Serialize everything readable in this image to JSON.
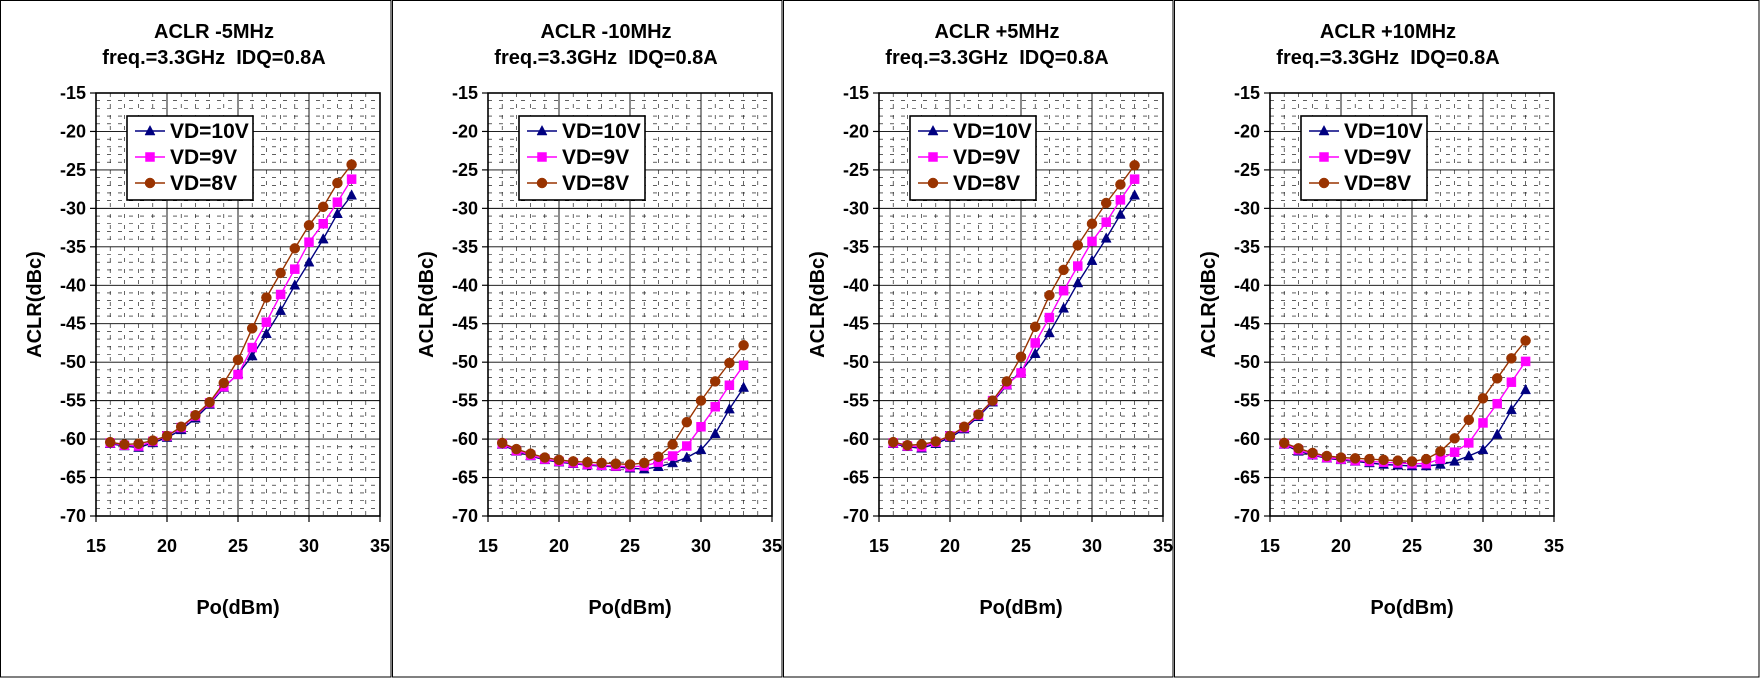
{
  "chart_data": [
    {
      "type": "line",
      "title": "ACLR -5MHz",
      "subtitle": "freq.=3.3GHz  IDQ=0.8A",
      "xlabel": "Po(dBm)",
      "ylabel": "ACLR(dBc)",
      "xlim": [
        15,
        35
      ],
      "ylim": [
        -70,
        -15
      ],
      "xticks": [
        "15",
        "20",
        "25",
        "30",
        "35"
      ],
      "yticks": [
        "-15",
        "-20",
        "-25",
        "-30",
        "-35",
        "-40",
        "-45",
        "-50",
        "-55",
        "-60",
        "-65",
        "-70"
      ],
      "grid": true,
      "legend": "top-left",
      "x": [
        16,
        17,
        18,
        19,
        20,
        21,
        22,
        23,
        24,
        25,
        26,
        27,
        28,
        29,
        30,
        31,
        32,
        33
      ],
      "series": [
        {
          "name": "VD=10V",
          "color": "#000080",
          "marker": "triangle",
          "values": [
            -60.6,
            -60.9,
            -61.1,
            -60.5,
            -59.8,
            -58.8,
            -57.3,
            -55.5,
            -53.3,
            -51.5,
            -49.2,
            -46.3,
            -43.3,
            -40.0,
            -37.0,
            -34.0,
            -30.7,
            -28.3
          ]
        },
        {
          "name": "VD=9V",
          "color": "#FF00FF",
          "marker": "square",
          "values": [
            -60.5,
            -60.8,
            -60.9,
            -60.3,
            -59.6,
            -58.5,
            -57.0,
            -55.3,
            -53.2,
            -51.6,
            -48.1,
            -44.8,
            -41.2,
            -37.9,
            -34.4,
            -32.0,
            -29.2,
            -26.2
          ]
        },
        {
          "name": "VD=8V",
          "color": "#993300",
          "marker": "circle",
          "values": [
            -60.4,
            -60.7,
            -60.6,
            -60.2,
            -59.6,
            -58.4,
            -56.9,
            -55.2,
            -52.7,
            -49.7,
            -45.6,
            -41.6,
            -38.4,
            -35.2,
            -32.2,
            -29.8,
            -26.7,
            -24.3
          ]
        }
      ]
    },
    {
      "type": "line",
      "title": "ACLR -10MHz",
      "subtitle": "freq.=3.3GHz  IDQ=0.8A",
      "xlabel": "Po(dBm)",
      "ylabel": "ACLR(dBc)",
      "xlim": [
        15,
        35
      ],
      "ylim": [
        -70,
        -15
      ],
      "xticks": [
        "15",
        "20",
        "25",
        "30",
        "35"
      ],
      "yticks": [
        "-15",
        "-20",
        "-25",
        "-30",
        "-35",
        "-40",
        "-45",
        "-50",
        "-55",
        "-60",
        "-65",
        "-70"
      ],
      "grid": true,
      "legend": "top-left",
      "x": [
        16,
        17,
        18,
        19,
        20,
        21,
        22,
        23,
        24,
        25,
        26,
        27,
        28,
        29,
        30,
        31,
        32,
        33
      ],
      "series": [
        {
          "name": "VD=10V",
          "color": "#000080",
          "marker": "triangle",
          "values": [
            -60.7,
            -61.6,
            -62.2,
            -62.7,
            -63.0,
            -63.2,
            -63.4,
            -63.5,
            -63.6,
            -63.8,
            -63.9,
            -63.6,
            -63.1,
            -62.4,
            -61.4,
            -59.3,
            -56.1,
            -53.3
          ]
        },
        {
          "name": "VD=9V",
          "color": "#FF00FF",
          "marker": "square",
          "values": [
            -60.6,
            -61.5,
            -62.1,
            -62.6,
            -62.9,
            -63.1,
            -63.3,
            -63.4,
            -63.5,
            -63.6,
            -63.5,
            -63.0,
            -62.2,
            -60.9,
            -58.4,
            -55.8,
            -53.0,
            -50.4
          ]
        },
        {
          "name": "VD=8V",
          "color": "#993300",
          "marker": "circle",
          "values": [
            -60.5,
            -61.3,
            -61.9,
            -62.4,
            -62.7,
            -62.9,
            -63.0,
            -63.1,
            -63.2,
            -63.3,
            -63.1,
            -62.3,
            -60.7,
            -57.8,
            -55.0,
            -52.5,
            -50.1,
            -47.8
          ]
        }
      ]
    },
    {
      "type": "line",
      "title": "ACLR +5MHz",
      "subtitle": "freq.=3.3GHz  IDQ=0.8A",
      "xlabel": "Po(dBm)",
      "ylabel": "ACLR(dBc)",
      "xlim": [
        15,
        35
      ],
      "ylim": [
        -70,
        -15
      ],
      "xticks": [
        "15",
        "20",
        "25",
        "30",
        "35"
      ],
      "yticks": [
        "-15",
        "-20",
        "-25",
        "-30",
        "-35",
        "-40",
        "-45",
        "-50",
        "-55",
        "-60",
        "-65",
        "-70"
      ],
      "grid": true,
      "legend": "top-left",
      "x": [
        16,
        17,
        18,
        19,
        20,
        21,
        22,
        23,
        24,
        25,
        26,
        27,
        28,
        29,
        30,
        31,
        32,
        33
      ],
      "series": [
        {
          "name": "VD=10V",
          "color": "#000080",
          "marker": "triangle",
          "values": [
            -60.6,
            -61.0,
            -61.2,
            -60.6,
            -59.8,
            -58.7,
            -57.1,
            -55.2,
            -53.0,
            -51.2,
            -48.9,
            -46.2,
            -43.0,
            -39.7,
            -36.8,
            -33.9,
            -30.8,
            -28.3
          ]
        },
        {
          "name": "VD=9V",
          "color": "#FF00FF",
          "marker": "square",
          "values": [
            -60.5,
            -60.9,
            -61.0,
            -60.4,
            -59.6,
            -58.5,
            -56.9,
            -55.0,
            -52.9,
            -51.4,
            -47.5,
            -44.2,
            -40.7,
            -37.5,
            -34.3,
            -31.8,
            -28.9,
            -26.2
          ]
        },
        {
          "name": "VD=8V",
          "color": "#993300",
          "marker": "circle",
          "values": [
            -60.4,
            -60.8,
            -60.7,
            -60.3,
            -59.6,
            -58.4,
            -56.8,
            -55.0,
            -52.5,
            -49.3,
            -45.4,
            -41.3,
            -38.0,
            -34.8,
            -32.0,
            -29.3,
            -26.9,
            -24.4
          ]
        }
      ]
    },
    {
      "type": "line",
      "title": "ACLR +10MHz",
      "subtitle": "freq.=3.3GHz  IDQ=0.8A",
      "xlabel": "Po(dBm)",
      "ylabel": "ACLR(dBc)",
      "xlim": [
        15,
        35
      ],
      "ylim": [
        -70,
        -15
      ],
      "xticks": [
        "15",
        "20",
        "25",
        "30",
        "35"
      ],
      "yticks": [
        "-15",
        "-20",
        "-25",
        "-30",
        "-35",
        "-40",
        "-45",
        "-50",
        "-55",
        "-60",
        "-65",
        "-70"
      ],
      "grid": true,
      "legend": "top-left",
      "x": [
        16,
        17,
        18,
        19,
        20,
        21,
        22,
        23,
        24,
        25,
        26,
        27,
        28,
        29,
        30,
        31,
        32,
        33
      ],
      "series": [
        {
          "name": "VD=10V",
          "color": "#000080",
          "marker": "triangle",
          "values": [
            -60.7,
            -61.6,
            -62.1,
            -62.5,
            -62.7,
            -62.9,
            -63.1,
            -63.3,
            -63.4,
            -63.5,
            -63.5,
            -63.3,
            -62.9,
            -62.2,
            -61.4,
            -59.4,
            -56.2,
            -53.6
          ]
        },
        {
          "name": "VD=9V",
          "color": "#FF00FF",
          "marker": "square",
          "values": [
            -60.6,
            -61.4,
            -62.0,
            -62.4,
            -62.6,
            -62.8,
            -62.9,
            -63.0,
            -63.1,
            -63.2,
            -63.2,
            -62.6,
            -61.7,
            -60.5,
            -57.9,
            -55.4,
            -52.6,
            -49.9
          ]
        },
        {
          "name": "VD=8V",
          "color": "#993300",
          "marker": "circle",
          "values": [
            -60.5,
            -61.2,
            -61.8,
            -62.2,
            -62.4,
            -62.5,
            -62.6,
            -62.7,
            -62.8,
            -62.9,
            -62.6,
            -61.6,
            -59.9,
            -57.5,
            -54.7,
            -52.1,
            -49.5,
            -47.2
          ]
        }
      ]
    }
  ]
}
